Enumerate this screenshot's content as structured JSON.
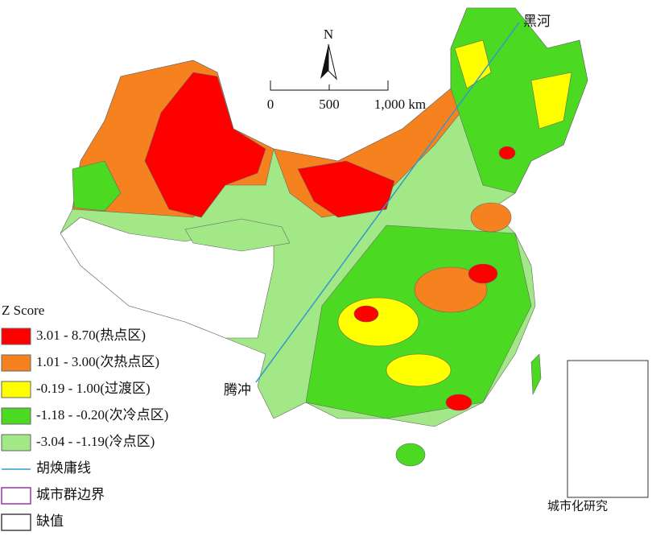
{
  "map": {
    "north_label": "N",
    "scale_bar": [
      "0",
      "500",
      "1,000 km"
    ],
    "places": [
      {
        "label": "黑河"
      },
      {
        "label": "腾冲"
      }
    ]
  },
  "legend": {
    "title": "Z Score",
    "classes": [
      {
        "label": "3.01 - 8.70(热点区)",
        "color": "#ff0000"
      },
      {
        "label": "1.01 - 3.00(次热点区)",
        "color": "#f5821f"
      },
      {
        "label": "-0.19 - 1.00(过渡区)",
        "color": "#ffff00"
      },
      {
        "label": "-1.18 - -0.20(次冷点区)",
        "color": "#4cd921"
      },
      {
        "label": "-3.04 - -1.19(冷点区)",
        "color": "#a3e886"
      }
    ],
    "lines": [
      {
        "label": "胡焕庸线",
        "color": "#3399cc"
      },
      {
        "label": "城市群边界",
        "color": "#9933aa"
      },
      {
        "label": "缺值",
        "color": "#444444"
      }
    ]
  },
  "watermark": "城市化研究"
}
